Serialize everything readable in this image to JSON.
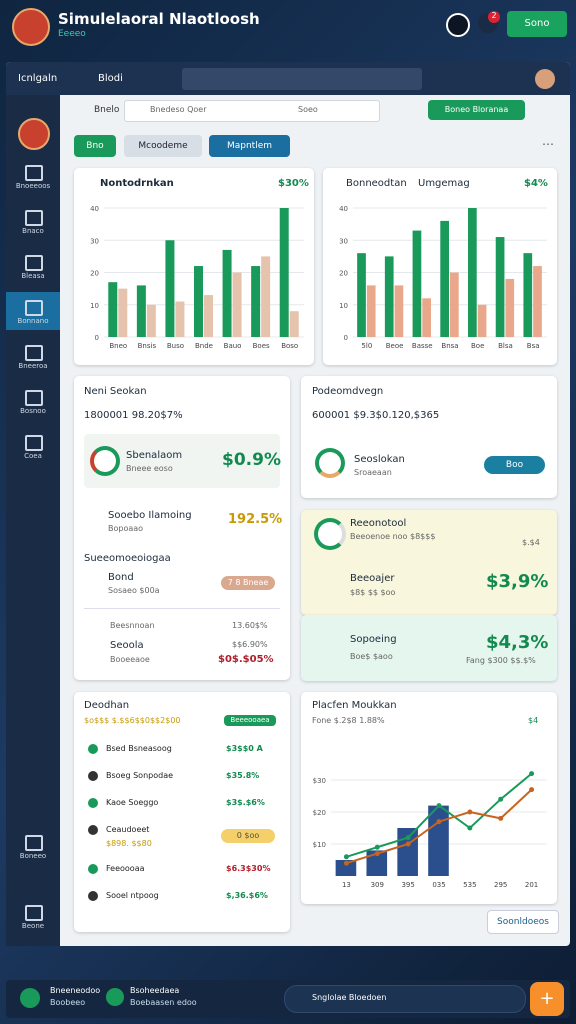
{
  "header": {
    "title": "Simulelaoral Nlaotloosh",
    "subtitle": "Eeeeo",
    "badge": "2",
    "button": "Sono"
  },
  "window": {
    "tab": "Icnlgaln",
    "crumb": "Blodi"
  },
  "sidebar": {
    "active": 3,
    "items": [
      "Bnoeeoos",
      "Bnaco",
      "Bleasa",
      "Bonnano",
      "Bneeroa",
      "Bosnoo",
      "Coea",
      "Boneeo",
      "Beone"
    ]
  },
  "toolbar": {
    "label": "Bnelo",
    "search": "Bnedeso Qoer",
    "search2": "Soeo",
    "action": "Boneo Bloranaa",
    "tabs": [
      "Bno",
      "Mcoodeme",
      "Mapntlem"
    ]
  },
  "charts": [
    {
      "type": "bar",
      "title": "Nontodrnkan",
      "value": "$30%",
      "categories": [
        "Bneo",
        "Bnsis",
        "Buso",
        "Bnde",
        "Bauo",
        "Boes",
        "Boso"
      ],
      "series": [
        {
          "color": "#1a9a5a",
          "values": [
            17,
            16,
            30,
            22,
            27,
            22,
            40
          ]
        },
        {
          "color": "#e6c3ad",
          "values": [
            15,
            10,
            11,
            13,
            20,
            25,
            8
          ]
        }
      ],
      "ylim": [
        0,
        40
      ],
      "yticks": [
        0,
        10,
        20,
        30,
        40
      ]
    },
    {
      "type": "bar",
      "title": "Bonneodtan",
      "subtitle": "Umgemag",
      "value": "$4%",
      "categories": [
        "5l0",
        "Beoe",
        "Basse",
        "Bnsa",
        "Boe",
        "Blsa",
        "Bsa"
      ],
      "series": [
        {
          "color": "#1a9a5a",
          "values": [
            26,
            25,
            33,
            36,
            40,
            31,
            26
          ]
        },
        {
          "color": "#e9a88c",
          "values": [
            16,
            16,
            12,
            20,
            10,
            18,
            22
          ]
        }
      ],
      "ylim": [
        0,
        40
      ],
      "yticks": [
        0,
        10,
        20,
        30,
        40
      ]
    },
    {
      "type": "combo",
      "title": "Placfen Moukkan",
      "subtitle": "Fone $.2$8 1.88%",
      "value": "$4",
      "categories": [
        "13",
        "309",
        "395",
        "035",
        "535",
        "295",
        "201"
      ],
      "series": [
        {
          "type": "bar",
          "color": "#2b4f8c",
          "values": [
            5,
            8,
            15,
            22,
            null,
            null,
            null
          ]
        },
        {
          "type": "line",
          "color": "#1a9a5a",
          "values": [
            6,
            9,
            12,
            22,
            15,
            24,
            32
          ]
        },
        {
          "type": "line",
          "color": "#c8641e",
          "values": [
            4,
            7,
            10,
            17,
            20,
            18,
            27
          ]
        }
      ],
      "ylim": [
        0,
        40
      ],
      "yticks": [
        {
          "value": 10,
          "label": "$10"
        },
        {
          "value": 20,
          "label": "$20"
        },
        {
          "value": 30,
          "label": "$30"
        }
      ]
    }
  ],
  "left_panel": {
    "title": "Neni Seokan",
    "amount": "1800001 98.20$7%",
    "featured": {
      "name": "Sbenalaom",
      "sub": "Bneee eoso",
      "value": "$0.9%"
    },
    "row": {
      "name": "Sooebo Ilamoing",
      "sub": "Bopoaao",
      "value": "192.5%"
    },
    "section": "Sueeomoeoiogaa",
    "item": {
      "name": "Bond",
      "sub": "Sosaeo $00a",
      "badge": "7 8 Bneae"
    },
    "list": [
      {
        "name": "Beesnnoan",
        "value": "13.60$%"
      },
      {
        "name": "Seoola",
        "sub": "Booeeaoe",
        "value": "$$6.90%"
      }
    ],
    "total": "$0$.$05%"
  },
  "right_panel": {
    "title": "Podeomdvegn",
    "amount": "600001 $9.3$0.120,$365",
    "row": {
      "name": "Seoslokan",
      "sub": "Sroaeaan",
      "button": "Boo"
    },
    "highlights": [
      {
        "name": "Reeonotool",
        "sub": "Beeoenoe noo $8$$$",
        "tag": "$.$4"
      },
      {
        "name": "Beeoajer",
        "sub": "$8$ $$ $oo",
        "value": "$3,9%"
      },
      {
        "name": "Sopoeing",
        "sub": "Boe$ $aoo",
        "value": "$4,3%",
        "note": "Fang $300 $$.$%"
      }
    ]
  },
  "list_panel": {
    "title": "Deodhan",
    "amount": "$o$$$ $.$$6$$0$$2$00",
    "tag": "Beeeooaea",
    "rows": [
      {
        "name": "Bsed Bsneasoog",
        "value": "$3$$0 A"
      },
      {
        "name": "Bsoeg Sonpodae",
        "value": "$35.8%"
      },
      {
        "name": "Kaoe Soeggo",
        "value": "$3$.$6%"
      },
      {
        "name": "Ceaudoeet",
        "sub": "$898. $$80",
        "badge": "0 $oo"
      },
      {
        "name": "Feeoooaa",
        "value": "$6.3$30%"
      },
      {
        "name": "Sooel ntpoog",
        "value": "$,36.$6%"
      }
    ]
  },
  "more_button": "Soonldoeos",
  "footer": {
    "left": "Bneeneodoo",
    "left_sub": "Boobeeo",
    "mid": "Bsoheedaea",
    "mid_sub": "Boebaasen edoo",
    "search": "Snglolae Bloedoen"
  }
}
